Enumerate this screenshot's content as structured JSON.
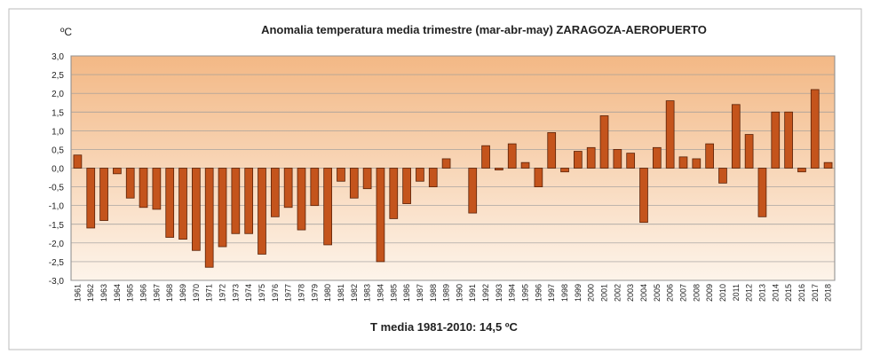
{
  "chart_data": {
    "type": "bar",
    "title": "Anomalia temperatura media trimestre (mar-abr-may) ZARAGOZA-AEROPUERTO",
    "y_label": "ºC",
    "x_label": "T media 1981-2010: 14,5 ºC",
    "categories": [
      "1961",
      "1962",
      "1963",
      "1964",
      "1965",
      "1966",
      "1967",
      "1968",
      "1969",
      "1970",
      "1971",
      "1972",
      "1973",
      "1974",
      "1975",
      "1976",
      "1977",
      "1978",
      "1979",
      "1980",
      "1981",
      "1982",
      "1983",
      "1984",
      "1985",
      "1986",
      "1987",
      "1988",
      "1989",
      "1990",
      "1991",
      "1992",
      "1993",
      "1994",
      "1995",
      "1996",
      "1997",
      "1998",
      "1999",
      "2000",
      "2001",
      "2002",
      "2003",
      "2004",
      "2005",
      "2006",
      "2007",
      "2008",
      "2009",
      "2010",
      "2011",
      "2012",
      "2013",
      "2014",
      "2015",
      "2016",
      "2017",
      "2018"
    ],
    "values": [
      0.35,
      -1.6,
      -1.4,
      -0.15,
      -0.8,
      -1.05,
      -1.1,
      -1.85,
      -1.9,
      -2.2,
      -2.65,
      -2.1,
      -1.75,
      -1.75,
      -2.3,
      -1.3,
      -1.05,
      -1.65,
      -1.0,
      -2.05,
      -0.35,
      -0.8,
      -0.55,
      -2.5,
      -1.35,
      -0.95,
      -0.35,
      -0.5,
      0.25,
      0.0,
      -1.2,
      0.6,
      -0.05,
      0.65,
      0.15,
      -0.5,
      0.95,
      -0.1,
      0.45,
      0.55,
      1.4,
      0.5,
      0.4,
      -1.45,
      0.55,
      1.8,
      0.3,
      0.25,
      0.65,
      -0.4,
      1.7,
      0.9,
      -1.3,
      1.5,
      1.5,
      -0.1,
      2.1,
      0.15
    ],
    "color": "#c4541c",
    "ylim": [
      -3,
      3
    ],
    "yticks": [
      {
        "value": 3,
        "label": "3,0"
      },
      {
        "value": 2.5,
        "label": "2,5"
      },
      {
        "value": 2,
        "label": "2,0"
      },
      {
        "value": 1.5,
        "label": "1,5"
      },
      {
        "value": 1,
        "label": "1,0"
      },
      {
        "value": 0.5,
        "label": "0,5"
      },
      {
        "value": 0,
        "label": "0,0"
      },
      {
        "value": -0.5,
        "label": "-0,5"
      },
      {
        "value": -1,
        "label": "-1,0"
      },
      {
        "value": -1.5,
        "label": "-1,5"
      },
      {
        "value": -2,
        "label": "-2,0"
      },
      {
        "value": -2.5,
        "label": "-2,5"
      },
      {
        "value": -3,
        "label": "-3,0"
      }
    ],
    "grid": true
  }
}
